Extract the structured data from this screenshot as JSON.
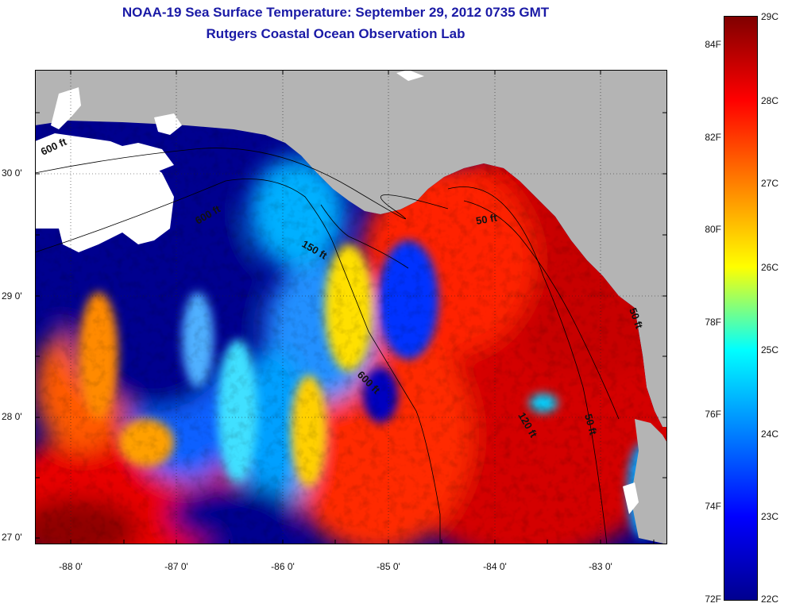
{
  "title_line1": "NOAA-19 Sea Surface Temperature:  September 29, 2012 0735 GMT",
  "title_line2": "Rutgers Coastal Ocean Observation Lab",
  "lat_labels": [
    "30 0'",
    "29 0'",
    "28 0'",
    "27 0'"
  ],
  "lon_labels": [
    "-88 0'",
    "-87 0'",
    "-86 0'",
    "-85 0'",
    "-84 0'",
    "-83 0'"
  ],
  "colorbar": {
    "fahrenheit": [
      "84F",
      "82F",
      "80F",
      "78F",
      "76F",
      "74F",
      "72F"
    ],
    "celsius": [
      "29C",
      "28C",
      "27C",
      "26C",
      "25C",
      "24C",
      "23C",
      "22C"
    ],
    "colors": [
      "#800000",
      "#ff0000",
      "#ff8000",
      "#ffff00",
      "#00ffff",
      "#0080ff",
      "#0000ff",
      "#00008f"
    ]
  },
  "contours": [
    {
      "label": "600 ft"
    },
    {
      "label": "150 ft"
    },
    {
      "label": "50 ft"
    },
    {
      "label": "600 ft"
    },
    {
      "label": "120 ft"
    },
    {
      "label": "50 ft"
    },
    {
      "label": "50 ft"
    }
  ],
  "colors": {
    "land": "#b4b4b4",
    "title": "#1a1aa6",
    "cloud": "#ffffff"
  }
}
